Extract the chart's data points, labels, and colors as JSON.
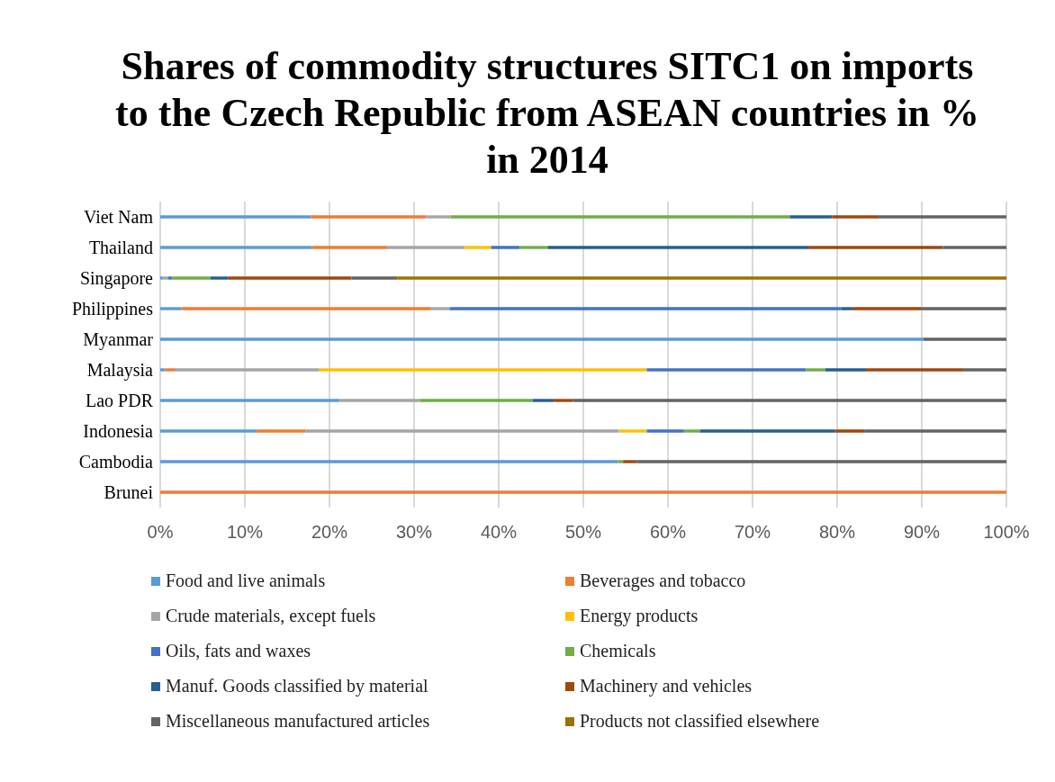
{
  "chart_data": {
    "type": "bar",
    "orientation": "horizontal",
    "stacked": true,
    "title": "Shares of commodity structures SITC1 on imports to the Czech Republic from ASEAN countries in % in 2014",
    "categories": [
      "Viet Nam",
      "Thailand",
      "Singapore",
      "Philippines",
      "Myanmar",
      "Malaysia",
      "Lao PDR",
      "Indonesia",
      "Cambodia",
      "Brunei"
    ],
    "series": [
      {
        "name": "Food and live animals",
        "color": "#5b9bd5",
        "values": [
          17.8,
          17.9,
          0.3,
          2.5,
          90.2,
          0.6,
          21.2,
          11.4,
          54.1,
          0
        ]
      },
      {
        "name": "Beverages and tobacco",
        "color": "#ed7d31",
        "values": [
          13.6,
          8.9,
          0,
          29.5,
          0,
          1.1,
          0,
          5.8,
          0,
          100
        ]
      },
      {
        "name": "Crude materials, except fuels",
        "color": "#a5a5a5",
        "values": [
          2.9,
          9.2,
          0.6,
          2.2,
          0,
          17.1,
          9.5,
          37.0,
          0,
          0
        ]
      },
      {
        "name": "Energy products",
        "color": "#ffc000",
        "values": [
          0,
          3.1,
          0,
          0,
          0,
          38.7,
          0,
          3.3,
          0,
          0
        ]
      },
      {
        "name": "Oils, fats and waxes",
        "color": "#4472c4",
        "values": [
          0,
          3.4,
          0.5,
          46.3,
          0,
          18.8,
          0,
          4.4,
          0,
          0
        ]
      },
      {
        "name": "Chemicals",
        "color": "#70ad47",
        "values": [
          40.1,
          3.3,
          4.5,
          0,
          0,
          2.3,
          13.3,
          1.9,
          0.6,
          0
        ]
      },
      {
        "name": "Manuf. Goods classified by material",
        "color": "#255e91",
        "values": [
          5.0,
          30.8,
          2.1,
          1.3,
          0,
          4.8,
          2.5,
          15.9,
          0,
          0
        ]
      },
      {
        "name": "Machinery and vehicles",
        "color": "#9e480e",
        "values": [
          5.5,
          15.9,
          14.6,
          8.1,
          0,
          11.5,
          2.3,
          3.5,
          1.6,
          0
        ]
      },
      {
        "name": "Miscellaneous manufactured articles",
        "color": "#636363",
        "values": [
          15.1,
          7.5,
          5.4,
          10.1,
          9.8,
          5.1,
          51.2,
          16.8,
          43.7,
          0
        ]
      },
      {
        "name": "Products not classified elsewhere",
        "color": "#997300",
        "values": [
          0,
          0,
          72.0,
          0,
          0,
          0,
          0,
          0,
          0,
          0
        ]
      }
    ],
    "xlim": [
      0,
      100
    ],
    "xticks": [
      {
        "value": 0,
        "label": "0%"
      },
      {
        "value": 10,
        "label": "10%"
      },
      {
        "value": 20,
        "label": "20%"
      },
      {
        "value": 30,
        "label": "30%"
      },
      {
        "value": 40,
        "label": "40%"
      },
      {
        "value": 50,
        "label": "50%"
      },
      {
        "value": 60,
        "label": "60%"
      },
      {
        "value": 70,
        "label": "70%"
      },
      {
        "value": 80,
        "label": "80%"
      },
      {
        "value": 90,
        "label": "90%"
      },
      {
        "value": 100,
        "label": "100%"
      }
    ],
    "grid": "x",
    "legend": "bottom"
  }
}
